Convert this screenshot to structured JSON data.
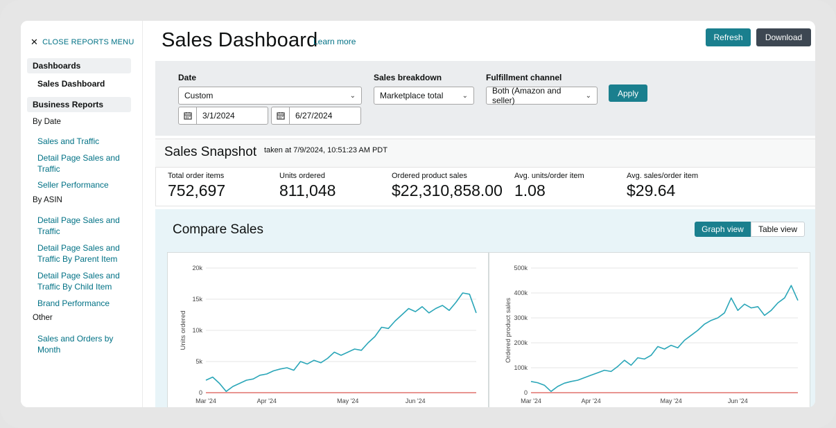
{
  "sidebar": {
    "close_label": "CLOSE REPORTS MENU",
    "sections": {
      "dashboards": "Dashboards",
      "business_reports": "Business Reports"
    },
    "dashboard_items": [
      "Sales Dashboard"
    ],
    "groups": {
      "by_date": "By Date",
      "by_asin": "By ASIN",
      "other": "Other"
    },
    "by_date_items": [
      "Sales and Traffic",
      "Detail Page Sales and Traffic",
      "Seller Performance"
    ],
    "by_asin_items": [
      "Detail Page Sales and Traffic",
      "Detail Page Sales and Traffic By Parent Item",
      "Detail Page Sales and Traffic By Child Item",
      "Brand Performance"
    ],
    "other_items": [
      "Sales and Orders by Month"
    ]
  },
  "header": {
    "title": "Sales Dashboard",
    "learn_more": "Learn more",
    "refresh": "Refresh",
    "download": "Download"
  },
  "filters": {
    "date_label": "Date",
    "date_value": "Custom",
    "start_date": "3/1/2024",
    "end_date": "6/27/2024",
    "breakdown_label": "Sales breakdown",
    "breakdown_value": "Marketplace total",
    "channel_label": "Fulfillment channel",
    "channel_value": "Both (Amazon and seller)",
    "apply": "Apply"
  },
  "snapshot": {
    "title": "Sales Snapshot",
    "taken": "taken at 7/9/2024, 10:51:23 AM PDT",
    "metrics": [
      {
        "label": "Total order items",
        "value": "752,697"
      },
      {
        "label": "Units ordered",
        "value": "811,048"
      },
      {
        "label": "Ordered product sales",
        "value": "$22,310,858.00"
      },
      {
        "label": "Avg. units/order item",
        "value": "1.08"
      },
      {
        "label": "Avg. sales/order item",
        "value": "$29.64"
      }
    ]
  },
  "compare": {
    "title": "Compare Sales",
    "graph_view": "Graph view",
    "table_view": "Table view"
  },
  "colors": {
    "accent": "#1a7f8e",
    "line": "#2aa6b8",
    "baseline": "#d9534f"
  },
  "chart_data": [
    {
      "type": "line",
      "ylabel": "Units ordered",
      "ylim": [
        0,
        20000
      ],
      "yticks": [
        "0",
        "5k",
        "10k",
        "15k",
        "20k"
      ],
      "xticks": [
        "Mar '24",
        "Apr '24",
        "May '24",
        "Jun '24"
      ],
      "x": [
        "3/1",
        "3/4",
        "3/7",
        "3/10",
        "3/13",
        "3/16",
        "3/19",
        "3/22",
        "3/25",
        "3/28",
        "3/31",
        "4/3",
        "4/6",
        "4/9",
        "4/12",
        "4/15",
        "4/18",
        "4/21",
        "4/24",
        "4/27",
        "4/30",
        "5/3",
        "5/6",
        "5/9",
        "5/12",
        "5/15",
        "5/18",
        "5/21",
        "5/24",
        "5/27",
        "5/30",
        "6/2",
        "6/5",
        "6/8",
        "6/11",
        "6/14",
        "6/17",
        "6/20",
        "6/23",
        "6/26",
        "6/27"
      ],
      "series": [
        {
          "values": [
            2000,
            2500,
            1500,
            200,
            1000,
            1500,
            2000,
            2200,
            2800,
            3000,
            3500,
            3800,
            4000,
            3600,
            5000,
            4600,
            5200,
            4800,
            5500,
            6500,
            6000,
            6500,
            7000,
            6800,
            8000,
            9000,
            10500,
            10300,
            11500,
            12500,
            13500,
            13000,
            13800,
            12800,
            13500,
            14000,
            13200,
            14500,
            16000,
            15800,
            12800
          ]
        },
        {
          "values": [
            0,
            0,
            0,
            0,
            0,
            0,
            0,
            0,
            0,
            0,
            0,
            0,
            0,
            0,
            0,
            0,
            0,
            0,
            0,
            0,
            0,
            0,
            0,
            0,
            0,
            0,
            0,
            0,
            0,
            0,
            0,
            0,
            0,
            0,
            0,
            0,
            0,
            0,
            0,
            0,
            0
          ]
        }
      ]
    },
    {
      "type": "line",
      "ylabel": "Ordered product sales",
      "ylim": [
        0,
        500000
      ],
      "yticks": [
        "0",
        "100k",
        "200k",
        "300k",
        "400k",
        "500k"
      ],
      "xticks": [
        "Mar '24",
        "Apr '24",
        "May '24",
        "Jun '24"
      ],
      "x": [
        "3/1",
        "3/4",
        "3/7",
        "3/10",
        "3/13",
        "3/16",
        "3/19",
        "3/22",
        "3/25",
        "3/28",
        "3/31",
        "4/3",
        "4/6",
        "4/9",
        "4/12",
        "4/15",
        "4/18",
        "4/21",
        "4/24",
        "4/27",
        "4/30",
        "5/3",
        "5/6",
        "5/9",
        "5/12",
        "5/15",
        "5/18",
        "5/21",
        "5/24",
        "5/27",
        "5/30",
        "6/2",
        "6/5",
        "6/8",
        "6/11",
        "6/14",
        "6/17",
        "6/20",
        "6/23",
        "6/26",
        "6/27"
      ],
      "series": [
        {
          "values": [
            45000,
            40000,
            30000,
            5000,
            25000,
            38000,
            45000,
            50000,
            60000,
            70000,
            80000,
            90000,
            85000,
            105000,
            130000,
            110000,
            140000,
            135000,
            150000,
            185000,
            175000,
            190000,
            180000,
            210000,
            230000,
            250000,
            275000,
            290000,
            300000,
            320000,
            380000,
            330000,
            355000,
            340000,
            345000,
            310000,
            330000,
            360000,
            380000,
            430000,
            370000
          ]
        },
        {
          "values": [
            0,
            0,
            0,
            0,
            0,
            0,
            0,
            0,
            0,
            0,
            0,
            0,
            0,
            0,
            0,
            0,
            0,
            0,
            0,
            0,
            0,
            0,
            0,
            0,
            0,
            0,
            0,
            0,
            0,
            0,
            0,
            0,
            0,
            0,
            0,
            0,
            0,
            0,
            0,
            0,
            0
          ]
        }
      ]
    }
  ]
}
